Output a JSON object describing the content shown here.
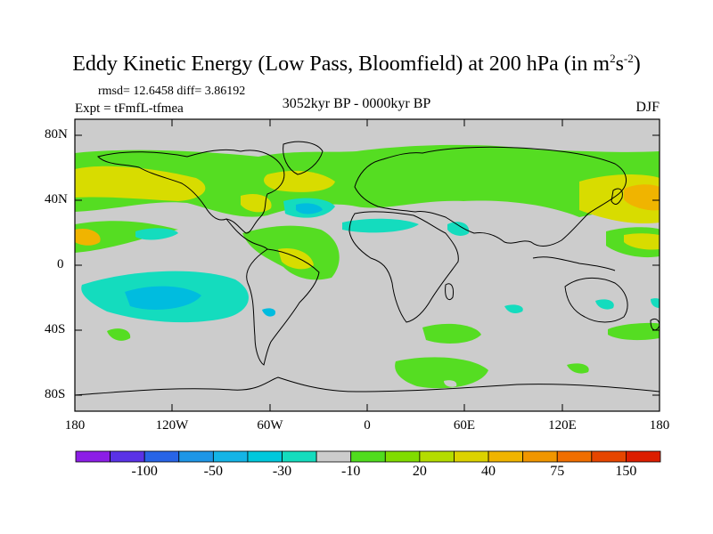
{
  "title": {
    "main": "Eddy Kinetic Energy (Low Pass, Bloomfield) at 200 hPa (in m",
    "sup1": "2",
    "mid": "s",
    "sup2": "-2",
    "close": ")"
  },
  "stats_text": "rmsd= 12.6458 diff= 3.86192",
  "experiment": "Expt = tFmfL-tfmea",
  "period": "3052kyr BP - 0000kyr BP",
  "season": "DJF",
  "map": {
    "projection": "cylindrical equidistant",
    "lon_range": [
      -180,
      180
    ],
    "lat_range": [
      -90,
      90
    ],
    "lat_ticks": [
      "80N",
      "40N",
      "0",
      "40S",
      "80S"
    ],
    "lon_ticks": [
      "180",
      "120W",
      "60W",
      "0",
      "60E",
      "120E",
      "180"
    ],
    "background_color": "#cccccc",
    "anomaly_regions": [
      {
        "name": "north-pacific-storm-track",
        "value": 40,
        "color": "#d8dc00"
      },
      {
        "name": "north-atlantic-storm-track",
        "value": 40,
        "color": "#d8dc00"
      },
      {
        "name": "eurasia-band",
        "value": 20,
        "color": "#55dd22"
      },
      {
        "name": "west-pacific-core",
        "value": 75,
        "color": "#f0a000"
      },
      {
        "name": "north-atlantic-dipole",
        "value": -30,
        "color": "#00bcdf"
      },
      {
        "name": "south-pacific-minimum",
        "value": -30,
        "color": "#00bcdf"
      },
      {
        "name": "southern-ocean-band",
        "value": 20,
        "color": "#55dd22"
      }
    ]
  },
  "colorbar": {
    "colors": [
      "#8c1ee6",
      "#5a32e6",
      "#2864e6",
      "#1e96e6",
      "#14b4e6",
      "#00c8dc",
      "#14dcbe",
      "#cccccc",
      "#50dc1e",
      "#80dc00",
      "#b4dc00",
      "#dcd200",
      "#f0b400",
      "#f09600",
      "#f06e00",
      "#e64600",
      "#dc1e00"
    ],
    "labels": [
      "-100",
      "-50",
      "-30",
      "-10",
      "20",
      "40",
      "75",
      "150"
    ],
    "units": "m2s-2"
  }
}
